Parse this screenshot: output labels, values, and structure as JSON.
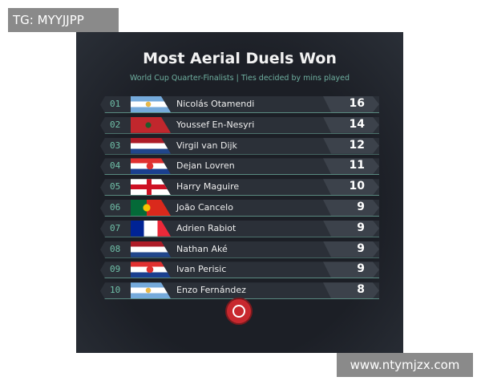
{
  "watermark_top": "TG: MYYJJPP",
  "watermark_bottom": "www.ntymjzx.com",
  "title": "Most Aerial Duels Won",
  "subtitle": "World Cup Quarter-Finalists | Ties decided by mins played",
  "rows": [
    {
      "rank": "01",
      "flag": "argentina",
      "name": "Nicolás Otamendi",
      "value": "16"
    },
    {
      "rank": "02",
      "flag": "morocco",
      "name": "Youssef En-Nesyri",
      "value": "14"
    },
    {
      "rank": "03",
      "flag": "netherlands",
      "name": "Virgil van Dijk",
      "value": "12"
    },
    {
      "rank": "04",
      "flag": "croatia",
      "name": "Dejan Lovren",
      "value": "11"
    },
    {
      "rank": "05",
      "flag": "england",
      "name": "Harry Maguire",
      "value": "10"
    },
    {
      "rank": "06",
      "flag": "portugal",
      "name": "João Cancelo",
      "value": "9"
    },
    {
      "rank": "07",
      "flag": "france",
      "name": "Adrien Rabiot",
      "value": "9"
    },
    {
      "rank": "08",
      "flag": "netherlands",
      "name": "Nathan Aké",
      "value": "9"
    },
    {
      "rank": "09",
      "flag": "croatia",
      "name": "Ivan Perisic",
      "value": "9"
    },
    {
      "rank": "10",
      "flag": "argentina",
      "name": "Enzo Fernández",
      "value": "8"
    }
  ]
}
